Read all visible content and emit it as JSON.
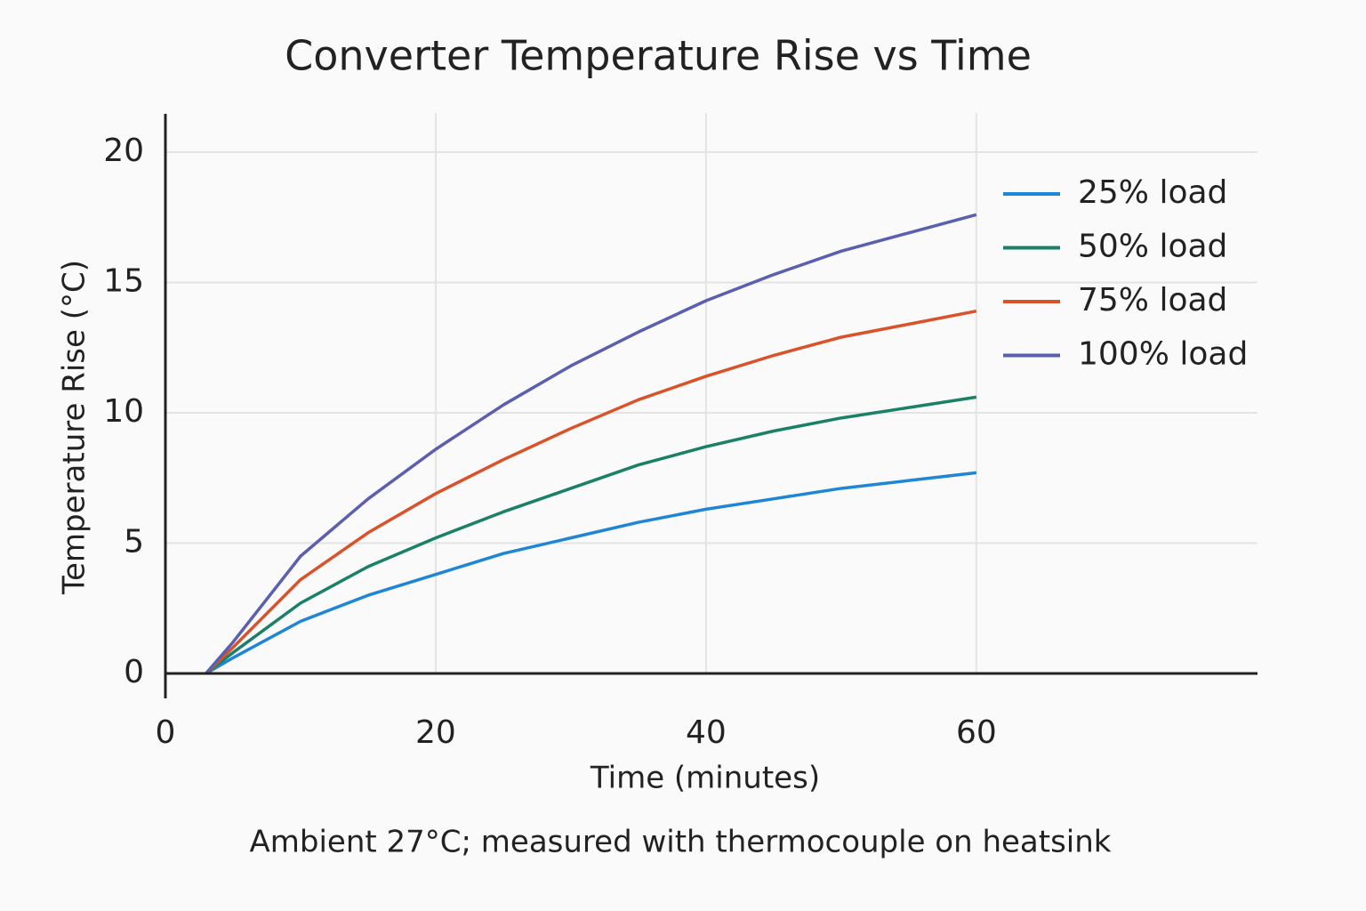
{
  "chart_data": {
    "type": "line",
    "title": "Converter Temperature Rise vs Time",
    "xlabel": "Time (minutes)",
    "ylabel": "Temperature Rise (°C)",
    "note": "Ambient 27°C; measured with thermocouple on heatsink",
    "x": [
      3,
      5,
      10,
      15,
      20,
      25,
      30,
      35,
      40,
      45,
      50,
      55,
      60
    ],
    "series": [
      {
        "name": "25% load",
        "color": "#1f86d6",
        "values": [
          0,
          0.6,
          2.0,
          3.0,
          3.8,
          4.6,
          5.2,
          5.8,
          6.3,
          6.7,
          7.1,
          7.4,
          7.7
        ]
      },
      {
        "name": "50% load",
        "color": "#1a8068",
        "values": [
          0,
          0.8,
          2.7,
          4.1,
          5.2,
          6.2,
          7.1,
          8.0,
          8.7,
          9.3,
          9.8,
          10.2,
          10.6
        ]
      },
      {
        "name": "75% load",
        "color": "#d9522a",
        "values": [
          0,
          1.0,
          3.6,
          5.4,
          6.9,
          8.2,
          9.4,
          10.5,
          11.4,
          12.2,
          12.9,
          13.4,
          13.9
        ]
      },
      {
        "name": "100% load",
        "color": "#5a5fb0",
        "values": [
          0,
          1.2,
          4.5,
          6.7,
          8.6,
          10.3,
          11.8,
          13.1,
          14.3,
          15.3,
          16.2,
          16.9,
          17.6
        ]
      }
    ],
    "xlim": [
      0,
      81
    ],
    "xticks": [
      0,
      20,
      40,
      60
    ],
    "ylim": [
      0,
      21.5
    ],
    "yticks": [
      0,
      5,
      10,
      15,
      20
    ],
    "grid": true,
    "legend": "upper right"
  }
}
